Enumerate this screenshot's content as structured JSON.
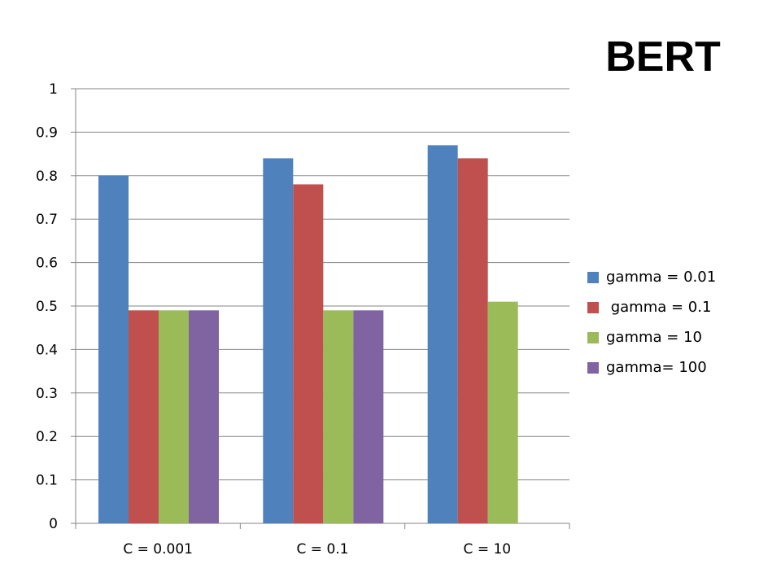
{
  "chart_data": {
    "type": "bar",
    "title": "BERT",
    "categories": [
      "C = 0.001",
      "C = 0.1",
      "C = 10"
    ],
    "series": [
      {
        "name": "gamma = 0.01",
        "color": "#4F81BD",
        "values": [
          0.8,
          0.84,
          0.87
        ]
      },
      {
        "name": " gamma = 0.1",
        "color": "#C0504D",
        "values": [
          0.49,
          0.78,
          0.84
        ]
      },
      {
        "name": "gamma = 10",
        "color": "#9BBB59",
        "values": [
          0.49,
          0.49,
          0.51
        ]
      },
      {
        "name": "gamma= 100",
        "color": "#8064A2",
        "values": [
          0.49,
          0.49,
          null
        ]
      }
    ],
    "ylim": [
      0,
      1
    ],
    "yticks": [
      "0",
      "0.1",
      "0.2",
      "0.3",
      "0.4",
      "0.5",
      "0.6",
      "0.7",
      "0.8",
      "0.9",
      "1"
    ],
    "grid": true,
    "legend_position": "right"
  }
}
